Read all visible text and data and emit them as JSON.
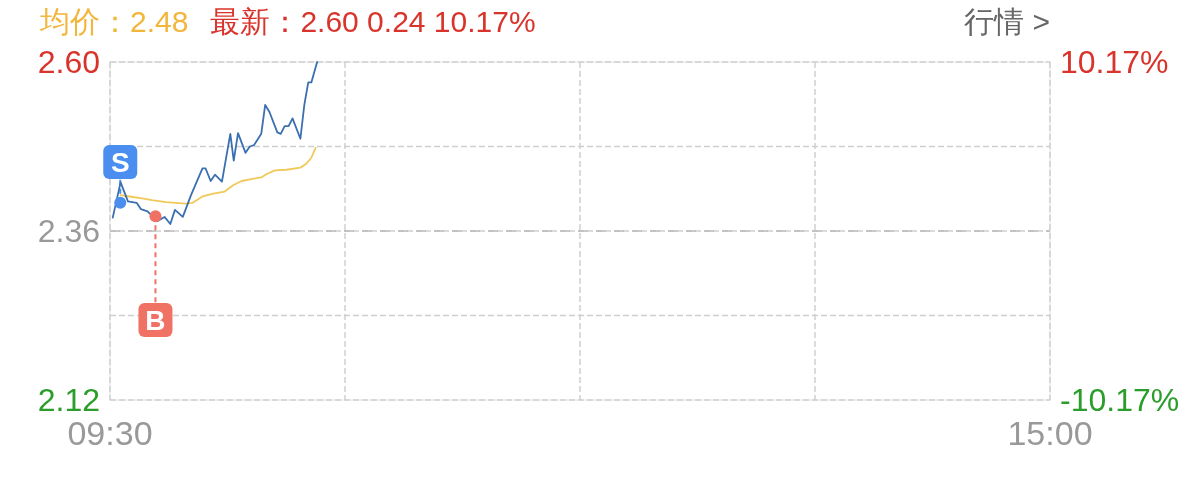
{
  "chart_data": {
    "type": "line",
    "annotations": [
      "均价：2.48",
      "最新：2.60  0.24  10.17%",
      "行情 >",
      {
        "text": "S",
        "x": 9.56,
        "y": 2.4
      },
      {
        "text": "B",
        "x": 9.766,
        "y": 2.381
      }
    ],
    "xlim": [
      9.5,
      15
    ],
    "xticks": [
      {
        "value": 9.5,
        "label": "09:30"
      },
      {
        "value": 10.875,
        "label": null
      },
      {
        "value": 12.25,
        "label": null
      },
      {
        "value": 13.625,
        "label": null
      },
      {
        "value": 15,
        "label": "15:00"
      }
    ],
    "ylim": [
      2.12,
      2.6
    ],
    "yticks": [
      {
        "value": 2.12,
        "label": "2.12"
      },
      {
        "value": 2.24,
        "label": null
      },
      {
        "value": 2.36,
        "label": "2.36"
      },
      {
        "value": 2.48,
        "label": null
      },
      {
        "value": 2.6,
        "label": "2.60"
      }
    ],
    "y2lim": [
      -10.17,
      10.17
    ],
    "y2ticks": [
      {
        "value": -10.17,
        "label": "-10.17%"
      },
      {
        "value": 10.17,
        "label": "10.17%"
      }
    ],
    "grid": true,
    "ref_lines": [
      {
        "axis": "y",
        "value": 2.36,
        "color": "#bbbbbb",
        "line_style": "dashed"
      }
    ],
    "series": [
      {
        "type": "scatter",
        "color": "#4a8ff0",
        "x": [
          9.56
        ],
        "values": [
          2.4
        ]
      },
      {
        "type": "scatter",
        "color": "#f07264",
        "x": [
          9.766
        ],
        "values": [
          2.381
        ]
      },
      {
        "color": "#3a6fb0",
        "x": [
          9.516,
          9.562,
          9.605,
          9.656,
          9.681,
          9.72,
          9.777,
          9.819,
          9.853,
          9.88,
          9.926,
          9.974,
          10.041,
          10.059,
          10.089,
          10.114,
          10.155,
          10.204,
          10.224,
          10.249,
          10.293,
          10.318,
          10.343,
          10.385,
          10.408,
          10.433,
          10.479,
          10.499,
          10.522,
          10.545,
          10.568,
          10.614,
          10.637,
          10.66,
          10.678,
          10.712
        ],
        "values": [
          2.379,
          2.429,
          2.402,
          2.4,
          2.391,
          2.388,
          2.374,
          2.38,
          2.37,
          2.39,
          2.38,
          2.411,
          2.449,
          2.449,
          2.431,
          2.44,
          2.43,
          2.498,
          2.46,
          2.499,
          2.471,
          2.48,
          2.482,
          2.498,
          2.539,
          2.529,
          2.5,
          2.498,
          2.509,
          2.509,
          2.52,
          2.491,
          2.539,
          2.571,
          2.571,
          2.6
        ]
      },
      {
        "color": "#f0c95a",
        "x": [
          9.562,
          9.615,
          9.697,
          9.745,
          9.828,
          9.942,
          9.984,
          10.041,
          10.105,
          10.171,
          10.22,
          10.27,
          10.334,
          10.385,
          10.417,
          10.465,
          10.531,
          10.614,
          10.646,
          10.678,
          10.703
        ],
        "values": [
          2.411,
          2.409,
          2.406,
          2.404,
          2.401,
          2.399,
          2.4,
          2.409,
          2.413,
          2.416,
          2.425,
          2.431,
          2.434,
          2.436,
          2.441,
          2.446,
          2.447,
          2.45,
          2.455,
          2.464,
          2.478
        ]
      }
    ]
  }
}
